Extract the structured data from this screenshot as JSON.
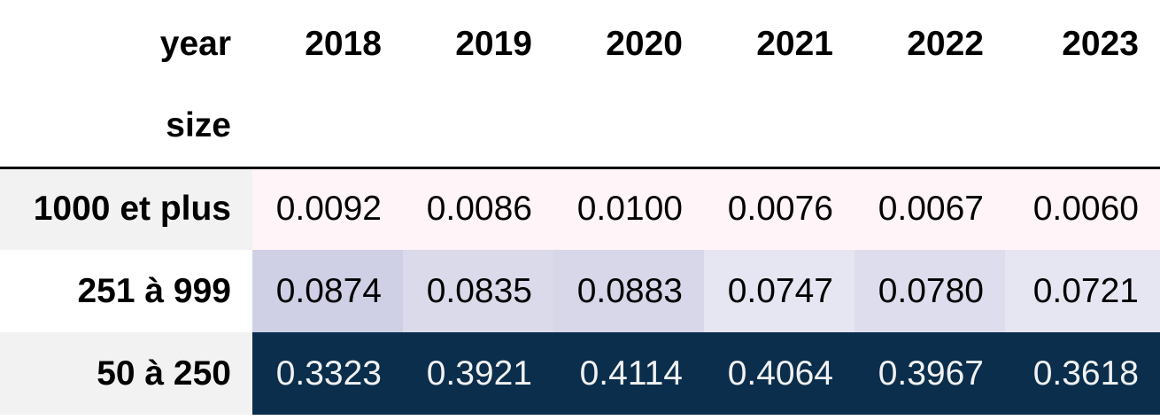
{
  "chart_data": {
    "type": "table",
    "index_name": "size",
    "columns_name": "year",
    "columns": [
      "2018",
      "2019",
      "2020",
      "2021",
      "2022",
      "2023"
    ],
    "rows": [
      {
        "label": "1000 et plus",
        "values": [
          "0.0092",
          "0.0086",
          "0.0100",
          "0.0076",
          "0.0067",
          "0.0060"
        ]
      },
      {
        "label": "251 à 999",
        "values": [
          "0.0874",
          "0.0835",
          "0.0883",
          "0.0747",
          "0.0780",
          "0.0721"
        ]
      },
      {
        "label": "50 à 250",
        "values": [
          "0.3323",
          "0.3921",
          "0.4114",
          "0.4064",
          "0.3967",
          "0.3618"
        ]
      }
    ],
    "cell_colors": [
      [
        "#fff4f7",
        "#fff4f7",
        "#fff4f7",
        "#fff4f7",
        "#fff4f7",
        "#fff4f7"
      ],
      [
        "#cfcfe5",
        "#dbdaeb",
        "#d8d7e9",
        "#e6e5f2",
        "#dedded",
        "#e6e5f2"
      ],
      [
        "#0a2e4c",
        "#0a2e4c",
        "#0a2e4c",
        "#0a2e4c",
        "#0a2e4c",
        "#0a2e4c"
      ]
    ],
    "text_colors": [
      [
        "#000000",
        "#000000",
        "#000000",
        "#000000",
        "#000000",
        "#000000"
      ],
      [
        "#000000",
        "#000000",
        "#000000",
        "#000000",
        "#000000",
        "#000000"
      ],
      [
        "#f1f1f1",
        "#f1f1f1",
        "#f1f1f1",
        "#f1f1f1",
        "#f1f1f1",
        "#f1f1f1"
      ]
    ]
  }
}
